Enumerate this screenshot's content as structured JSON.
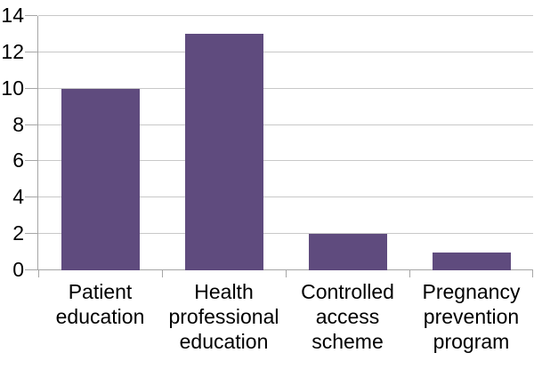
{
  "chart_data": {
    "type": "bar",
    "title": "",
    "xlabel": "",
    "ylabel": "",
    "categories": [
      "Patient education",
      "Health professional education",
      "Controlled access scheme",
      "Pregnancy prevention program"
    ],
    "values": [
      10,
      13,
      2,
      1
    ],
    "ylim": [
      0,
      14
    ],
    "yticks": [
      0,
      2,
      4,
      6,
      8,
      10,
      12,
      14
    ],
    "grid": true,
    "legend": "none",
    "colors": {
      "bar": "#5F4B7E",
      "gridline": "#C8C8C8",
      "axis": "#A6A6A6",
      "text": "#000000",
      "background": "#FFFFFF"
    }
  }
}
